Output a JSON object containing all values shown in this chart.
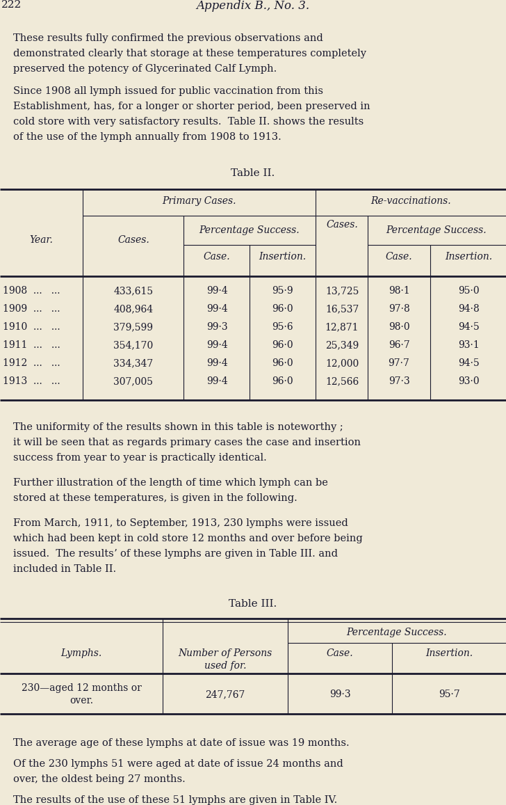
{
  "bg_color": "#f0ead8",
  "text_color": "#1a1a2e",
  "page_num": "222",
  "header_title": "Appendix B., No. 3.",
  "para1_lines": [
    "These results fully confirmed the previous observations and",
    "demonstrated clearly that storage at these temperatures completely",
    "preserved the potency of Glycerinated Calf Lymph."
  ],
  "para2_lines": [
    "Since 1908 all lymph issued for public vaccination from this",
    "Establishment, has, for a longer or shorter period, been preserved in",
    "cold store with very satisfactory results.  Table II. shows the results",
    "of the use of the lymph annually from 1908 to 1913."
  ],
  "table2_title": "Table II.",
  "table2_years": [
    "1908",
    "1909",
    "1910",
    "1911",
    "1912",
    "1913"
  ],
  "table2_cases_primary": [
    "433,615",
    "408,964",
    "379,599",
    "354,170",
    "334,347",
    "307,005"
  ],
  "table2_pct_case_primary": [
    "99·4",
    "99·4",
    "99·3",
    "99·4",
    "99·4",
    "99·4"
  ],
  "table2_pct_ins_primary": [
    "95·9",
    "96·0",
    "95·6",
    "96·0",
    "96·0",
    "96·0"
  ],
  "table2_cases_revac": [
    "13,725",
    "16,537",
    "12,871",
    "25,349",
    "12,000",
    "12,566"
  ],
  "table2_pct_case_revac": [
    "98·1",
    "97·8",
    "98·0",
    "96·7",
    "97·7",
    "97·3"
  ],
  "table2_pct_ins_revac": [
    "95·0",
    "94·8",
    "94·5",
    "93·1",
    "94·5",
    "93·0"
  ],
  "para3_lines": [
    "The uniformity of the results shown in this table is noteworthy ;",
    "it will be seen that as regards primary cases the case and insertion",
    "success from year to year is practically identical."
  ],
  "para4_lines": [
    "Further illustration of the length of time which lymph can be",
    "stored at these temperatures, is given in the following."
  ],
  "para5_lines": [
    "From March, 1911, to September, 1913, 230 lymphs were issued",
    "which had been kept in cold store 12 months and over before being",
    "issued.  The resultsʼ of these lymphs are given in Table III. and",
    "included in Table II."
  ],
  "table3_title": "Table III.",
  "table3_lymph_line1": "230—aged 12 months or",
  "table3_lymph_line2": "over.",
  "table3_persons": "247,767",
  "table3_case": "99·3",
  "table3_ins": "95·7",
  "para6": "The average age of these lymphs at date of issue was 19 months.",
  "para7_lines": [
    "Of the 230 lymphs 51 were aged at date of issue 24 months and",
    "over, the oldest being 27 months."
  ],
  "para8": "The results of the use of these 51 lymphs are given in Table IV."
}
